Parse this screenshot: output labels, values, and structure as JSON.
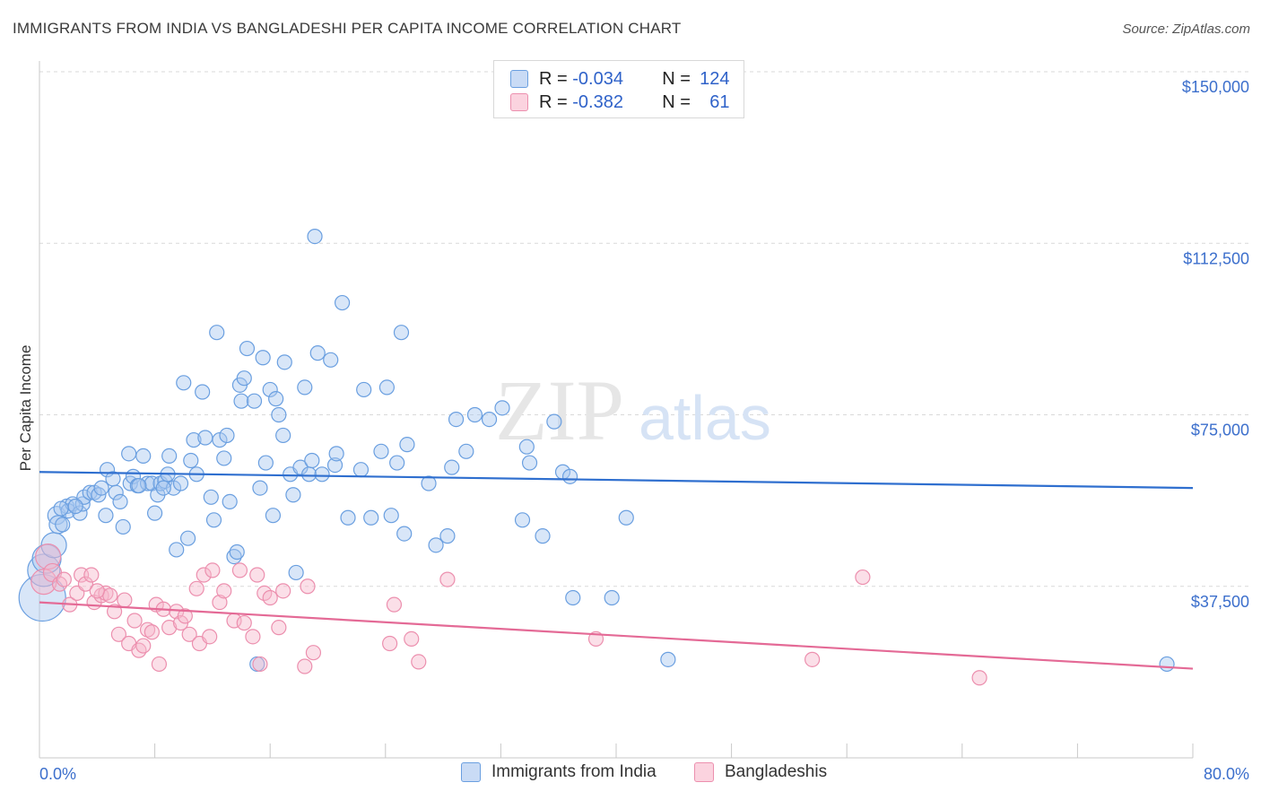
{
  "title": "IMMIGRANTS FROM INDIA VS BANGLADESHI PER CAPITA INCOME CORRELATION CHART",
  "source": "Source: ZipAtlas.com",
  "watermark": {
    "zip": "ZIP",
    "atlas": "atlas"
  },
  "colors": {
    "india_fill": "#a9c8f0",
    "india_stroke": "#6a9fe0",
    "india_line": "#2f6fcf",
    "bangla_fill": "#f6b9cc",
    "bangla_stroke": "#ec8fae",
    "bangla_line": "#e46a96",
    "grid": "#d9d9d9",
    "axis_text": "#3c6fcc"
  },
  "legend": {
    "rows": [
      {
        "r_label": "R = ",
        "r_value": "-0.034",
        "n_label": "N = ",
        "n_value": "124"
      },
      {
        "r_label": "R = ",
        "r_value": "-0.382",
        "n_label": "N = ",
        "n_value": "61"
      }
    ]
  },
  "bottom_legend": [
    "Immigrants from India",
    "Bangladeshis"
  ],
  "chart_data": {
    "type": "scatter",
    "title": "IMMIGRANTS FROM INDIA VS BANGLADESHI PER CAPITA INCOME CORRELATION CHART",
    "xlabel": "",
    "ylabel": "Per Capita Income",
    "xlim": [
      0,
      80
    ],
    "ylim": [
      0,
      150000
    ],
    "x_tick_labels": [
      "0.0%",
      "80.0%"
    ],
    "y_ticks": [
      37500,
      75000,
      112500,
      150000
    ],
    "y_tick_labels": [
      "$37,500",
      "$75,000",
      "$112,500",
      "$150,000"
    ],
    "grid": "horizontal dashed",
    "series": [
      {
        "name": "Immigrants from India",
        "trend": {
          "x0": 0,
          "y0": 62500,
          "x1": 80,
          "y1": 59000
        },
        "points": [
          [
            0.2,
            35000,
            26
          ],
          [
            0.3,
            41000,
            18
          ],
          [
            0.5,
            43500,
            16
          ],
          [
            1.0,
            46500,
            14
          ],
          [
            1.2,
            53000,
            10
          ],
          [
            1.3,
            51000,
            10
          ],
          [
            1.6,
            51000,
            8
          ],
          [
            1.9,
            55000,
            8
          ],
          [
            2.0,
            54000,
            8
          ],
          [
            2.3,
            55500,
            8
          ],
          [
            2.8,
            53500,
            8
          ],
          [
            3.0,
            55500,
            8
          ],
          [
            3.1,
            57000,
            8
          ],
          [
            3.5,
            58000,
            8
          ],
          [
            3.8,
            58000,
            8
          ],
          [
            4.1,
            57500,
            8
          ],
          [
            4.3,
            59000,
            8
          ],
          [
            4.6,
            53000,
            8
          ],
          [
            4.7,
            63000,
            8
          ],
          [
            5.1,
            61000,
            8
          ],
          [
            5.3,
            58000,
            8
          ],
          [
            5.6,
            56000,
            8
          ],
          [
            5.8,
            50500,
            8
          ],
          [
            6.2,
            66500,
            8
          ],
          [
            6.3,
            60000,
            8
          ],
          [
            6.5,
            61500,
            8
          ],
          [
            6.8,
            59500,
            8
          ],
          [
            7.2,
            66000,
            8
          ],
          [
            7.5,
            60000,
            8
          ],
          [
            7.8,
            60000,
            8
          ],
          [
            8.0,
            53500,
            8
          ],
          [
            8.2,
            57500,
            8
          ],
          [
            8.4,
            60000,
            8
          ],
          [
            8.7,
            60500,
            8
          ],
          [
            8.9,
            62000,
            8
          ],
          [
            9.0,
            66000,
            8
          ],
          [
            9.3,
            59000,
            8
          ],
          [
            9.5,
            45500,
            8
          ],
          [
            9.8,
            60000,
            8
          ],
          [
            10.0,
            82000,
            8
          ],
          [
            10.3,
            48000,
            8
          ],
          [
            10.5,
            65000,
            8
          ],
          [
            10.7,
            69500,
            8
          ],
          [
            10.9,
            62000,
            8
          ],
          [
            11.3,
            80000,
            8
          ],
          [
            11.5,
            70000,
            8
          ],
          [
            11.9,
            57000,
            8
          ],
          [
            12.1,
            52000,
            8
          ],
          [
            12.3,
            93000,
            8
          ],
          [
            12.5,
            69500,
            8
          ],
          [
            12.8,
            65500,
            8
          ],
          [
            13.0,
            70500,
            8
          ],
          [
            13.2,
            56000,
            8
          ],
          [
            13.5,
            44000,
            8
          ],
          [
            13.7,
            45000,
            8
          ],
          [
            13.9,
            81500,
            8
          ],
          [
            14.0,
            78000,
            8
          ],
          [
            14.2,
            83000,
            8
          ],
          [
            14.4,
            89500,
            8
          ],
          [
            14.9,
            78000,
            8
          ],
          [
            15.1,
            20500,
            8
          ],
          [
            15.3,
            59000,
            8
          ],
          [
            15.5,
            87500,
            8
          ],
          [
            15.7,
            64500,
            8
          ],
          [
            16.0,
            80500,
            8
          ],
          [
            16.2,
            53000,
            8
          ],
          [
            16.4,
            78500,
            8
          ],
          [
            16.6,
            75000,
            8
          ],
          [
            16.9,
            70500,
            8
          ],
          [
            17.0,
            86500,
            8
          ],
          [
            17.4,
            62000,
            8
          ],
          [
            17.6,
            57500,
            8
          ],
          [
            17.8,
            40500,
            8
          ],
          [
            18.1,
            63500,
            8
          ],
          [
            18.4,
            81000,
            8
          ],
          [
            18.7,
            62000,
            8
          ],
          [
            18.9,
            65000,
            8
          ],
          [
            19.1,
            114000,
            8
          ],
          [
            19.3,
            88500,
            8
          ],
          [
            19.6,
            62000,
            8
          ],
          [
            20.2,
            87000,
            8
          ],
          [
            20.5,
            64000,
            8
          ],
          [
            20.6,
            66500,
            8
          ],
          [
            21.0,
            99500,
            8
          ],
          [
            21.4,
            52500,
            8
          ],
          [
            22.3,
            63000,
            8
          ],
          [
            22.5,
            80500,
            8
          ],
          [
            23.0,
            52500,
            8
          ],
          [
            23.7,
            67000,
            8
          ],
          [
            24.1,
            81000,
            8
          ],
          [
            24.4,
            53000,
            8
          ],
          [
            24.8,
            64500,
            8
          ],
          [
            25.1,
            93000,
            8
          ],
          [
            25.3,
            49000,
            8
          ],
          [
            25.5,
            68500,
            8
          ],
          [
            27.0,
            60000,
            8
          ],
          [
            27.5,
            46500,
            8
          ],
          [
            28.3,
            48500,
            8
          ],
          [
            28.6,
            63500,
            8
          ],
          [
            28.9,
            74000,
            8
          ],
          [
            29.6,
            67000,
            8
          ],
          [
            30.2,
            75000,
            8
          ],
          [
            31.2,
            74000,
            8
          ],
          [
            32.1,
            76500,
            8
          ],
          [
            33.5,
            52000,
            8
          ],
          [
            33.8,
            68000,
            8
          ],
          [
            34.0,
            64500,
            8
          ],
          [
            34.9,
            48500,
            8
          ],
          [
            35.7,
            73500,
            8
          ],
          [
            36.3,
            62500,
            8
          ],
          [
            36.8,
            61500,
            8
          ],
          [
            37.0,
            35000,
            8
          ],
          [
            39.7,
            35000,
            8
          ],
          [
            40.7,
            52500,
            8
          ],
          [
            43.6,
            21500,
            8
          ],
          [
            78.2,
            20500,
            8
          ],
          [
            1.5,
            54500,
            8
          ],
          [
            2.5,
            55000,
            8
          ],
          [
            6.9,
            59500,
            8
          ],
          [
            8.6,
            59000,
            8
          ]
        ]
      },
      {
        "name": "Bangladeshis",
        "trend": {
          "x0": 0,
          "y0": 34000,
          "x1": 80,
          "y1": 19500
        },
        "points": [
          [
            0.3,
            38500,
            14
          ],
          [
            0.6,
            44000,
            14
          ],
          [
            0.9,
            40500,
            10
          ],
          [
            1.4,
            38000,
            8
          ],
          [
            1.7,
            39000,
            8
          ],
          [
            2.1,
            33500,
            8
          ],
          [
            2.6,
            36000,
            8
          ],
          [
            2.9,
            40000,
            8
          ],
          [
            3.2,
            38000,
            8
          ],
          [
            3.6,
            40000,
            8
          ],
          [
            3.8,
            34000,
            8
          ],
          [
            4.3,
            35500,
            8
          ],
          [
            4.6,
            36000,
            8
          ],
          [
            4.9,
            35500,
            8
          ],
          [
            5.2,
            32000,
            8
          ],
          [
            5.5,
            27000,
            8
          ],
          [
            5.9,
            34500,
            8
          ],
          [
            6.2,
            25000,
            8
          ],
          [
            6.6,
            30000,
            8
          ],
          [
            6.9,
            23500,
            8
          ],
          [
            7.2,
            24500,
            8
          ],
          [
            7.5,
            28000,
            8
          ],
          [
            7.8,
            27500,
            8
          ],
          [
            8.1,
            33500,
            8
          ],
          [
            8.3,
            20500,
            8
          ],
          [
            8.6,
            32500,
            8
          ],
          [
            9.0,
            28500,
            8
          ],
          [
            9.5,
            32000,
            8
          ],
          [
            9.8,
            29500,
            8
          ],
          [
            10.1,
            31000,
            8
          ],
          [
            10.4,
            27000,
            8
          ],
          [
            10.9,
            37000,
            8
          ],
          [
            11.1,
            25000,
            8
          ],
          [
            11.4,
            40000,
            8
          ],
          [
            11.8,
            26500,
            8
          ],
          [
            12.0,
            41000,
            8
          ],
          [
            12.5,
            34000,
            8
          ],
          [
            12.8,
            36500,
            8
          ],
          [
            13.5,
            30000,
            8
          ],
          [
            13.9,
            41000,
            8
          ],
          [
            14.2,
            29500,
            8
          ],
          [
            14.8,
            26500,
            8
          ],
          [
            15.1,
            40000,
            8
          ],
          [
            15.3,
            20500,
            8
          ],
          [
            15.6,
            36000,
            8
          ],
          [
            16.0,
            35000,
            8
          ],
          [
            16.6,
            28500,
            8
          ],
          [
            16.9,
            36500,
            8
          ],
          [
            18.4,
            20000,
            8
          ],
          [
            18.6,
            37500,
            8
          ],
          [
            19.0,
            23000,
            8
          ],
          [
            24.3,
            25000,
            8
          ],
          [
            24.6,
            33500,
            8
          ],
          [
            25.8,
            26000,
            8
          ],
          [
            26.3,
            21000,
            8
          ],
          [
            28.3,
            39000,
            8
          ],
          [
            38.6,
            26000,
            8
          ],
          [
            53.6,
            21500,
            8
          ],
          [
            57.1,
            39500,
            8
          ],
          [
            65.2,
            17500,
            8
          ],
          [
            4.0,
            36500,
            8
          ]
        ]
      }
    ]
  }
}
